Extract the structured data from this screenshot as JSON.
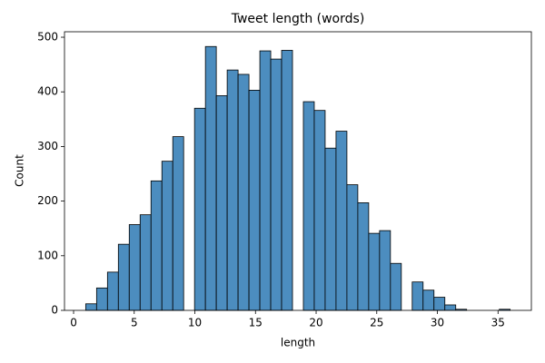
{
  "chart_data": {
    "type": "histogram",
    "title": "Tweet length (words)",
    "xlabel": "length",
    "ylabel": "Count",
    "color": "#4c8dbf",
    "edgecolor": "#000000",
    "bins": [
      1,
      1.8974,
      2.7949,
      3.6923,
      4.5897,
      5.4872,
      6.3846,
      7.2821,
      8.1795,
      9.0769,
      9.9744,
      10.8718,
      11.7692,
      12.6667,
      13.5641,
      14.4615,
      15.359,
      16.2564,
      17.1538,
      18.0513,
      18.9487,
      19.8462,
      20.7436,
      21.641,
      22.5385,
      23.4359,
      24.3333,
      25.2308,
      26.1282,
      27.0256,
      27.9231,
      28.8205,
      29.7179,
      30.6154,
      31.5128,
      32.4103,
      33.3077,
      34.2051,
      35.1026,
      36
    ],
    "values": [
      12,
      41,
      70,
      121,
      157,
      175,
      237,
      273,
      318,
      0,
      370,
      483,
      393,
      440,
      432,
      403,
      475,
      460,
      476,
      0,
      382,
      366,
      297,
      328,
      230,
      197,
      141,
      146,
      86,
      0,
      52,
      37,
      24,
      10,
      2,
      0,
      0,
      0,
      2
    ],
    "xlim": [
      -0.75,
      37.75
    ],
    "xticks": [
      0,
      5,
      10,
      15,
      20,
      25,
      30,
      35
    ],
    "ylim": [
      0,
      510
    ],
    "yticks": [
      0,
      100,
      200,
      300,
      400,
      500
    ]
  }
}
